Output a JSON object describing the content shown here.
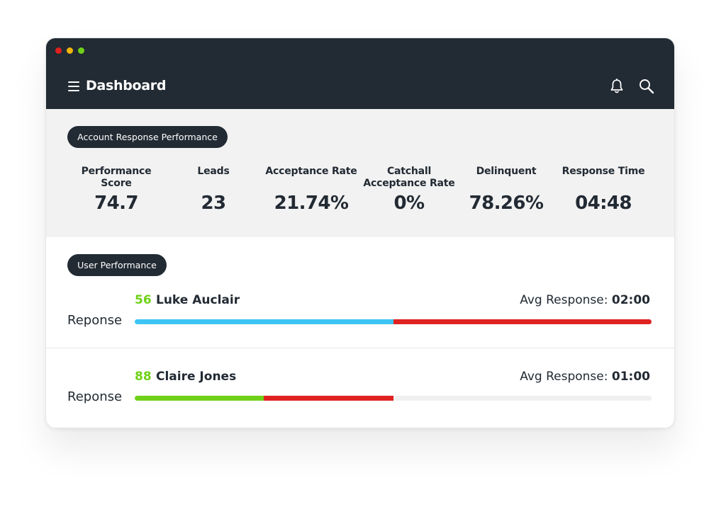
{
  "window": {
    "dots": [
      "#e0201e",
      "#f0b50c",
      "#6fd117"
    ]
  },
  "header": {
    "title": "Dashboard",
    "icons": [
      "menu-icon",
      "bell-icon",
      "search-icon"
    ]
  },
  "account_section": {
    "label": "Account Response Performance",
    "metrics": [
      {
        "label": "Performance Score",
        "value": "74.7"
      },
      {
        "label": "Leads",
        "value": "23"
      },
      {
        "label": "Acceptance Rate",
        "value": "21.74%"
      },
      {
        "label": "Catchall Acceptance Rate",
        "value": "0%"
      },
      {
        "label": "Delinquent",
        "value": "78.26%"
      },
      {
        "label": "Response Time",
        "value": "04:48"
      }
    ]
  },
  "user_section": {
    "label": "User Performance",
    "avg_prefix": "Avg Response:",
    "users": [
      {
        "score": "56",
        "name": "Luke Auclair",
        "avg_response": "02:00",
        "row_label": "Reponse",
        "bar": [
          {
            "color": "#3ec4f5",
            "fraction": 0.5
          },
          {
            "color": "#e02222",
            "fraction": 0.5
          }
        ]
      },
      {
        "score": "88",
        "name": "Claire Jones",
        "avg_response": "01:00",
        "row_label": "Reponse",
        "bar": [
          {
            "color": "#6fd117",
            "fraction": 0.25
          },
          {
            "color": "#e02222",
            "fraction": 0.25
          }
        ]
      }
    ]
  },
  "colors": {
    "dark": "#222a33",
    "panel": "#f2f2f2",
    "accent_green": "#6fd117"
  }
}
